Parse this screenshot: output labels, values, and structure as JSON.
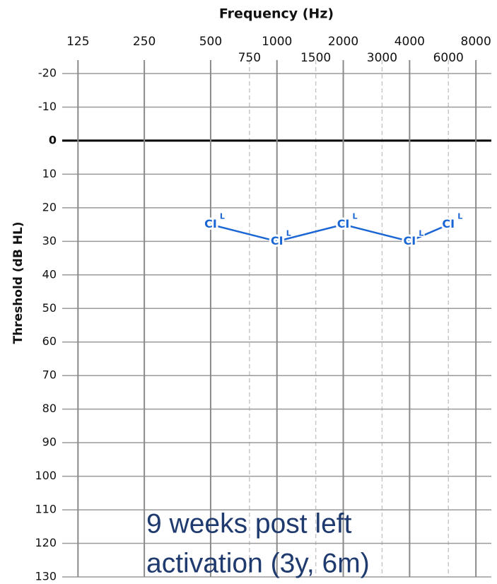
{
  "chart_data": {
    "type": "line",
    "title": "Frequency (Hz)",
    "y_label": "Threshold (dB HL)",
    "x_scale": "log",
    "y_inverted": true,
    "xlim": [
      106,
      9400
    ],
    "ylim": [
      -24,
      130
    ],
    "xticks": [
      125,
      250,
      500,
      1000,
      2000,
      4000,
      8000
    ],
    "xticks_minor": [
      750,
      1500,
      3000,
      6000
    ],
    "yticks": [
      -20,
      -10,
      0,
      10,
      20,
      30,
      40,
      50,
      60,
      70,
      80,
      90,
      100,
      110,
      120,
      130
    ],
    "zero_line": true,
    "grid": true,
    "x": [
      500,
      1000,
      2000,
      4000,
      6000
    ],
    "series": [
      {
        "name": "CI",
        "ear": "L",
        "color": "#1a66d4",
        "values": [
          25,
          30,
          25,
          30,
          25
        ]
      }
    ],
    "annotation": [
      "9 weeks post left",
      "activation (3y, 6m)"
    ],
    "annotation_color": "#1f3a6e"
  }
}
